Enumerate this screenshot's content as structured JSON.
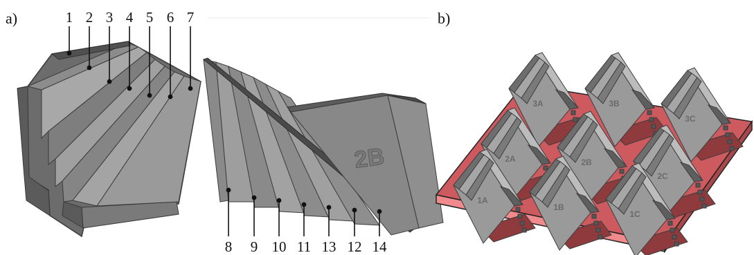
{
  "panel_labels": {
    "a": "a)",
    "b": "b)"
  },
  "part_a1": {
    "callouts": [
      "1",
      "2",
      "3",
      "4",
      "5",
      "6",
      "7"
    ]
  },
  "part_a2": {
    "engraving": "2B",
    "callouts": [
      "8",
      "9",
      "10",
      "11",
      "13",
      "12",
      "14"
    ]
  },
  "build_plate": {
    "plate_color": "#cc5a5e",
    "part_color": "#9a9a9a",
    "specimens": [
      "3A",
      "3B",
      "3C",
      "2A",
      "2B",
      "2C",
      "1A",
      "1B",
      "1C"
    ]
  }
}
